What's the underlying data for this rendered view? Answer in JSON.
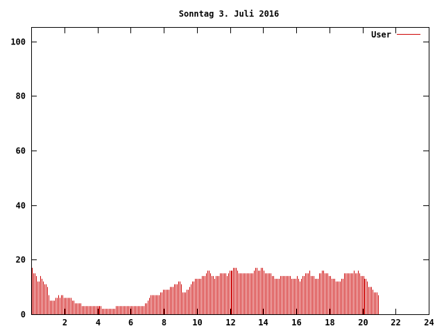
{
  "chart_data": {
    "type": "bar",
    "title": "Sonntag 3. Juli 2016",
    "xlabel": "",
    "ylabel": "",
    "xlim": [
      0,
      24
    ],
    "ylim": [
      0,
      105
    ],
    "x_ticks": [
      2,
      4,
      6,
      8,
      10,
      12,
      14,
      16,
      18,
      20,
      22,
      24
    ],
    "y_ticks": [
      0,
      20,
      40,
      60,
      80,
      100
    ],
    "grid": false,
    "legend": "top-right",
    "series": [
      {
        "name": "User",
        "color": "#cc0000",
        "x_start": 0,
        "x_step_minutes": 5,
        "values": [
          17,
          15,
          15,
          14,
          12,
          12,
          14,
          13,
          12,
          11,
          11,
          10,
          7,
          5,
          5,
          5,
          5,
          6,
          6,
          7,
          6,
          7,
          7,
          6,
          6,
          6,
          6,
          6,
          6,
          5,
          5,
          4,
          4,
          4,
          4,
          4,
          3,
          3,
          3,
          3,
          3,
          3,
          3,
          3,
          3,
          3,
          3,
          3,
          3,
          3,
          3,
          2,
          2,
          2,
          2,
          2,
          2,
          2,
          2,
          2,
          2,
          3,
          3,
          3,
          3,
          3,
          3,
          3,
          3,
          3,
          3,
          3,
          3,
          3,
          3,
          3,
          3,
          3,
          3,
          3,
          3,
          3,
          4,
          4,
          5,
          6,
          7,
          7,
          7,
          7,
          7,
          7,
          7,
          8,
          8,
          9,
          9,
          9,
          9,
          9,
          10,
          10,
          10,
          11,
          11,
          11,
          12,
          12,
          11,
          8,
          8,
          8,
          9,
          9,
          10,
          11,
          12,
          12,
          13,
          13,
          13,
          13,
          13,
          14,
          14,
          14,
          15,
          16,
          16,
          15,
          14,
          14,
          13,
          14,
          14,
          14,
          15,
          15,
          15,
          15,
          15,
          14,
          15,
          16,
          16,
          16,
          17,
          17,
          17,
          16,
          15,
          15,
          15,
          15,
          15,
          15,
          15,
          15,
          15,
          15,
          15,
          16,
          17,
          17,
          16,
          16,
          17,
          17,
          16,
          15,
          15,
          15,
          15,
          15,
          14,
          14,
          13,
          13,
          13,
          13,
          14,
          14,
          14,
          14,
          14,
          14,
          14,
          14,
          13,
          13,
          13,
          13,
          14,
          13,
          12,
          13,
          14,
          14,
          15,
          15,
          15,
          16,
          14,
          14,
          14,
          13,
          13,
          13,
          15,
          15,
          16,
          16,
          15,
          15,
          15,
          14,
          14,
          13,
          13,
          13,
          12,
          12,
          12,
          12,
          13,
          13,
          15,
          15,
          15,
          15,
          15,
          15,
          15,
          16,
          15,
          15,
          16,
          15,
          14,
          14,
          14,
          13,
          13,
          12,
          10,
          10,
          10,
          9,
          8,
          8,
          8,
          7
        ]
      }
    ]
  }
}
